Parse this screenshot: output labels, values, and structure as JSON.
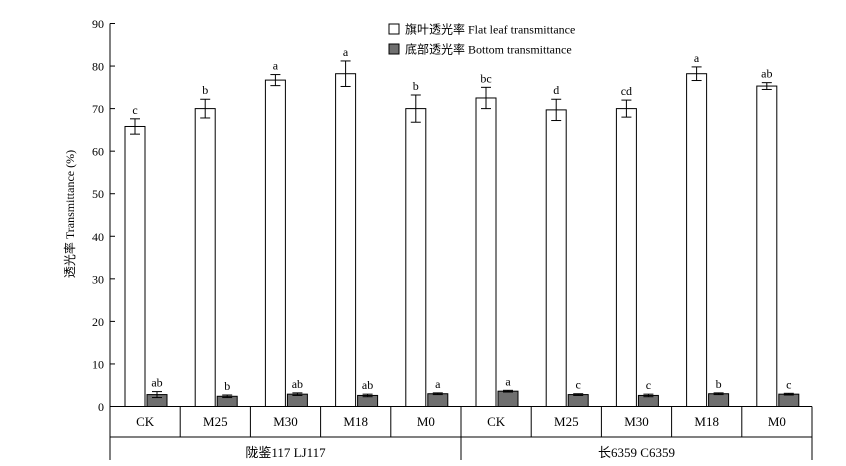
{
  "chart_data": {
    "type": "bar",
    "ylabel": "透光率 Transmittance (%)",
    "ylim": [
      0,
      90
    ],
    "yticks": [
      0,
      10,
      20,
      30,
      40,
      50,
      60,
      70,
      80,
      90
    ],
    "legend_position": "top-center",
    "categories": [
      "CK",
      "M25",
      "M30",
      "M18",
      "M0",
      "CK",
      "M25",
      "M30",
      "M18",
      "M0"
    ],
    "groups": [
      {
        "label": "陇鉴117 LJ117",
        "count": 5
      },
      {
        "label": "长6359 C6359",
        "count": 5
      }
    ],
    "series": [
      {
        "name": "旗叶透光率 Flat leaf transmittance",
        "color": "#ffffff",
        "values": [
          65.8,
          70.0,
          76.7,
          78.2,
          70.0,
          72.5,
          69.7,
          70.0,
          78.2,
          75.3
        ],
        "errors": [
          1.8,
          2.2,
          1.3,
          3.0,
          3.2,
          2.5,
          2.5,
          2.0,
          1.6,
          0.8
        ],
        "labels": [
          "c",
          "b",
          "a",
          "a",
          "b",
          "bc",
          "d",
          "cd",
          "a",
          "ab"
        ]
      },
      {
        "name": "底部透光率 Bottom transmittance",
        "color": "#6f6f6f",
        "values": [
          2.8,
          2.4,
          2.9,
          2.6,
          3.0,
          3.6,
          2.8,
          2.6,
          3.0,
          2.9
        ],
        "errors": [
          0.7,
          0.3,
          0.3,
          0.3,
          0.2,
          0.2,
          0.2,
          0.3,
          0.2,
          0.2
        ],
        "labels": [
          "ab",
          "b",
          "ab",
          "ab",
          "a",
          "a",
          "c",
          "c",
          "b",
          "c"
        ]
      }
    ]
  }
}
